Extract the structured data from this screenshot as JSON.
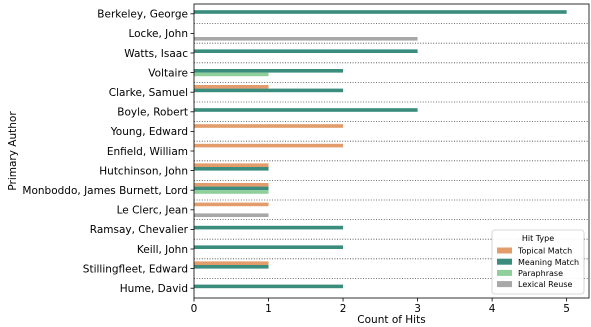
{
  "chart_data": {
    "type": "bar",
    "orientation": "horizontal",
    "xlabel": "Count of Hits",
    "ylabel": "Primary Author",
    "xlim": [
      0,
      5.3
    ],
    "xticks": [
      0,
      1,
      2,
      3,
      4,
      5
    ],
    "grid": "horizontal dotted separators between categories",
    "legend": {
      "title": "Hit Type",
      "placement": "lower-right"
    },
    "categories": [
      "Berkeley, George",
      "Locke, John",
      "Watts, Isaac",
      "Voltaire",
      "Clarke, Samuel",
      "Boyle, Robert",
      "Young, Edward",
      "Enfield, William",
      "Hutchinson, John",
      "Monboddo, James Burnett, Lord",
      "Le Clerc, Jean",
      "Ramsay, Chevalier",
      "Keill, John",
      "Stillingfleet, Edward",
      "Hume, David"
    ],
    "series": [
      {
        "name": "Topical Match",
        "color": "#e39c6b",
        "values": [
          0,
          0,
          0,
          0,
          1,
          0,
          2,
          2,
          1,
          1,
          1,
          0,
          0,
          1,
          0
        ]
      },
      {
        "name": "Meaning Match",
        "color": "#3a8c7d",
        "values": [
          5,
          0,
          3,
          2,
          2,
          3,
          0,
          0,
          1,
          1,
          0,
          2,
          2,
          1,
          2
        ]
      },
      {
        "name": "Paraphrase",
        "color": "#8ecf9a",
        "values": [
          0,
          0,
          0,
          1,
          0,
          0,
          0,
          0,
          0,
          1,
          0,
          0,
          0,
          0,
          0
        ]
      },
      {
        "name": "Lexical Reuse",
        "color": "#a8a8a8",
        "values": [
          0,
          3,
          0,
          0,
          0,
          0,
          0,
          0,
          0,
          0,
          1,
          0,
          0,
          0,
          0
        ]
      }
    ]
  }
}
